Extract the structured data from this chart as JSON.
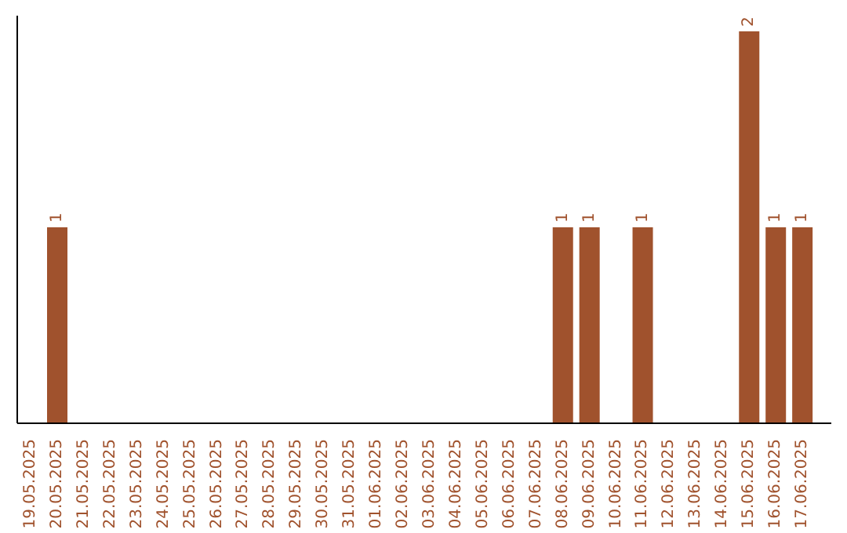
{
  "chart_data": {
    "type": "bar",
    "categories": [
      "19.05.2025",
      "20.05.2025",
      "21.05.2025",
      "22.05.2025",
      "23.05.2025",
      "24.05.2025",
      "25.05.2025",
      "26.05.2025",
      "27.05.2025",
      "28.05.2025",
      "29.05.2025",
      "30.05.2025",
      "31.05.2025",
      "01.06.2025",
      "02.06.2025",
      "03.06.2025",
      "04.06.2025",
      "05.06.2025",
      "06.06.2025",
      "07.06.2025",
      "08.06.2025",
      "09.06.2025",
      "10.06.2025",
      "11.06.2025",
      "12.06.2025",
      "13.06.2025",
      "14.06.2025",
      "15.06.2025",
      "16.06.2025",
      "17.06.2025"
    ],
    "values": [
      0,
      1,
      0,
      0,
      0,
      0,
      0,
      0,
      0,
      0,
      0,
      0,
      0,
      0,
      0,
      0,
      0,
      0,
      0,
      0,
      1,
      1,
      0,
      1,
      0,
      0,
      0,
      2,
      1,
      1
    ],
    "value_labels": [
      null,
      "1",
      null,
      null,
      null,
      null,
      null,
      null,
      null,
      null,
      null,
      null,
      null,
      null,
      null,
      null,
      null,
      null,
      null,
      null,
      "1",
      "1",
      null,
      "1",
      null,
      null,
      null,
      "2",
      "1",
      "1"
    ],
    "color": "#a0522d",
    "grid": false,
    "legend": false,
    "tick_labels": "x"
  }
}
